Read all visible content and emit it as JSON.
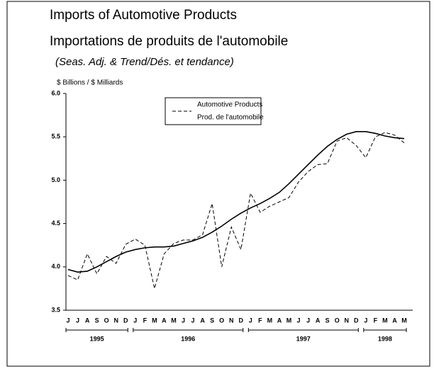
{
  "chart_data": {
    "type": "line",
    "title": "Imports of Automotive Products",
    "title_fr": "Importations de produits de l'automobile",
    "subtitle": "(Seas. Adj. & Trend/Dés. et tendance)",
    "y_label": "$ Billions / $ Milliards",
    "categories": [
      "J",
      "J",
      "A",
      "S",
      "O",
      "N",
      "D",
      "J",
      "F",
      "M",
      "A",
      "M",
      "J",
      "J",
      "A",
      "S",
      "O",
      "N",
      "D",
      "J",
      "F",
      "M",
      "A",
      "M",
      "J",
      "J",
      "A",
      "S",
      "O",
      "N",
      "D",
      "J",
      "F",
      "M",
      "A",
      "M"
    ],
    "year_groups": [
      {
        "label": "1995",
        "start": 0,
        "end": 6
      },
      {
        "label": "1996",
        "start": 7,
        "end": 18
      },
      {
        "label": "1997",
        "start": 19,
        "end": 30
      },
      {
        "label": "1998",
        "start": 31,
        "end": 35
      }
    ],
    "series": [
      {
        "name": "Automotive Products",
        "name_fr": "Prod. de l'automobile",
        "color": "#000000",
        "dashed": true,
        "values": [
          3.9,
          3.85,
          4.15,
          3.92,
          4.12,
          4.04,
          4.26,
          4.32,
          4.25,
          3.75,
          4.15,
          4.27,
          4.31,
          4.31,
          4.37,
          4.73,
          4.0,
          4.46,
          4.2,
          4.85,
          4.63,
          4.7,
          4.75,
          4.8,
          4.98,
          5.1,
          5.18,
          5.19,
          5.45,
          5.49,
          5.4,
          5.26,
          5.5,
          5.55,
          5.52,
          5.43
        ]
      },
      {
        "color": "#000000",
        "dashed": false,
        "values": [
          3.97,
          3.94,
          3.95,
          4.0,
          4.06,
          4.12,
          4.17,
          4.2,
          4.22,
          4.23,
          4.23,
          4.24,
          4.27,
          4.3,
          4.34,
          4.4,
          4.47,
          4.55,
          4.62,
          4.68,
          4.73,
          4.79,
          4.86,
          4.96,
          5.07,
          5.18,
          5.29,
          5.39,
          5.47,
          5.53,
          5.56,
          5.56,
          5.54,
          5.51,
          5.49,
          5.48
        ]
      }
    ],
    "ylim": [
      3.5,
      6.0
    ],
    "yticks": [
      {
        "value": 3.5,
        "label": "3.5"
      },
      {
        "value": 4,
        "label": "4.0"
      },
      4.5,
      {
        "value": 5,
        "label": "5.0"
      },
      5.5,
      {
        "value": 6,
        "label": "6.0"
      }
    ],
    "grid": false
  }
}
